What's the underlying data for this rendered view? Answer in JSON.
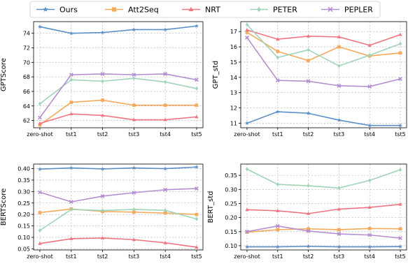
{
  "legend": {
    "placement": "top-center",
    "entries": [
      {
        "name": "Ours",
        "color": "#5b8fc8",
        "marker": "star"
      },
      {
        "name": "Att2Seq",
        "color": "#f5a95a",
        "marker": "square"
      },
      {
        "name": "NRT",
        "color": "#ee7582",
        "marker": "triangle"
      },
      {
        "name": "PETER",
        "color": "#9fd4b7",
        "marker": "diamond"
      },
      {
        "name": "PEPLER",
        "color": "#b58ed0",
        "marker": "x"
      }
    ]
  },
  "chart_data": [
    {
      "type": "line",
      "ylabel": "GPTScore",
      "grid": true,
      "categories": [
        "zero-shot",
        "tst1",
        "tst2",
        "tst3",
        "tst4",
        "tst5"
      ],
      "ylim": [
        61,
        75.6
      ],
      "yticks": [
        62,
        64,
        66,
        68,
        70,
        72,
        74
      ],
      "ytick_labels": [
        "62",
        "64",
        "66",
        "68",
        "70",
        "72",
        "74"
      ],
      "series": [
        {
          "name": "Ours",
          "values": [
            74.9,
            74.0,
            74.1,
            74.5,
            74.5,
            75.0
          ]
        },
        {
          "name": "Att2Seq",
          "values": [
            61.4,
            64.5,
            64.8,
            64.1,
            64.1,
            64.1
          ]
        },
        {
          "name": "NRT",
          "values": [
            61.6,
            62.9,
            62.7,
            62.1,
            62.1,
            62.5
          ]
        },
        {
          "name": "PETER",
          "values": [
            64.3,
            67.6,
            67.4,
            67.8,
            67.3,
            66.4
          ]
        },
        {
          "name": "PEPLER",
          "values": [
            62.4,
            68.3,
            68.4,
            68.3,
            68.4,
            67.6
          ]
        }
      ]
    },
    {
      "type": "line",
      "ylabel": "GPT_std",
      "grid": true,
      "categories": [
        "zero-shot",
        "tst1",
        "tst2",
        "tst3",
        "tst4",
        "tst5"
      ],
      "ylim": [
        10.7,
        17.65
      ],
      "yticks": [
        11,
        12,
        13,
        14,
        15,
        16,
        17
      ],
      "ytick_labels": [
        "11",
        "12",
        "13",
        "14",
        "15",
        "16",
        "17"
      ],
      "series": [
        {
          "name": "Ours",
          "values": [
            11.0,
            11.75,
            11.65,
            11.2,
            10.85,
            10.85
          ]
        },
        {
          "name": "Att2Seq",
          "values": [
            16.95,
            15.7,
            15.1,
            16.0,
            15.4,
            15.6
          ]
        },
        {
          "name": "NRT",
          "values": [
            17.1,
            16.5,
            16.7,
            16.65,
            16.1,
            16.8
          ]
        },
        {
          "name": "PETER",
          "values": [
            17.45,
            15.3,
            15.8,
            14.75,
            15.45,
            16.2
          ]
        },
        {
          "name": "PEPLER",
          "values": [
            16.6,
            13.8,
            13.75,
            13.45,
            13.4,
            13.9
          ]
        }
      ]
    },
    {
      "type": "line",
      "ylabel": "BERTScore",
      "grid": true,
      "categories": [
        "zero-shot",
        "tst1",
        "tst2",
        "tst3",
        "tst4",
        "tst5"
      ],
      "ylim": [
        0.045,
        0.42
      ],
      "yticks": [
        0.05,
        0.1,
        0.15,
        0.2,
        0.25,
        0.3,
        0.35,
        0.4
      ],
      "ytick_labels": [
        "0.05",
        "0.10",
        "0.15",
        "0.20",
        "0.25",
        "0.30",
        "0.35",
        "0.40"
      ],
      "series": [
        {
          "name": "Ours",
          "values": [
            0.398,
            0.403,
            0.399,
            0.403,
            0.4,
            0.407
          ]
        },
        {
          "name": "Att2Seq",
          "values": [
            0.208,
            0.224,
            0.213,
            0.21,
            0.206,
            0.2
          ]
        },
        {
          "name": "NRT",
          "values": [
            0.073,
            0.094,
            0.097,
            0.09,
            0.076,
            0.057
          ]
        },
        {
          "name": "PETER",
          "values": [
            0.13,
            0.222,
            0.217,
            0.222,
            0.218,
            0.18
          ]
        },
        {
          "name": "PEPLER",
          "values": [
            0.297,
            0.255,
            0.28,
            0.295,
            0.308,
            0.313
          ]
        }
      ]
    },
    {
      "type": "line",
      "ylabel": "BERT_std",
      "grid": true,
      "categories": [
        "zero-shot",
        "tst1",
        "tst2",
        "tst3",
        "tst4",
        "tst5"
      ],
      "ylim": [
        0.085,
        0.39
      ],
      "yticks": [
        0.1,
        0.15,
        0.2,
        0.25,
        0.3,
        0.35
      ],
      "ytick_labels": [
        "0.10",
        "0.15",
        "0.20",
        "0.25",
        "0.30",
        "0.35"
      ],
      "series": [
        {
          "name": "Ours",
          "values": [
            0.096,
            0.096,
            0.098,
            0.096,
            0.096,
            0.097
          ]
        },
        {
          "name": "Att2Seq",
          "values": [
            0.148,
            0.157,
            0.16,
            0.157,
            0.161,
            0.16
          ]
        },
        {
          "name": "NRT",
          "values": [
            0.228,
            0.224,
            0.214,
            0.23,
            0.236,
            0.247
          ]
        },
        {
          "name": "PETER",
          "values": [
            0.372,
            0.318,
            0.313,
            0.305,
            0.332,
            0.37
          ]
        },
        {
          "name": "PEPLER",
          "values": [
            0.15,
            0.17,
            0.152,
            0.142,
            0.138,
            0.127
          ]
        }
      ]
    }
  ]
}
